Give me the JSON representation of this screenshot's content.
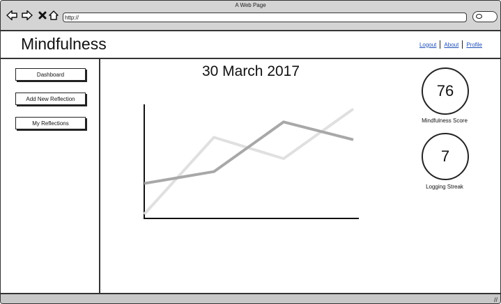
{
  "browser": {
    "window_title": "A Web Page",
    "url": "http://",
    "icons": [
      "back-arrow-icon",
      "forward-arrow-icon",
      "close-icon",
      "home-icon",
      "search-icon"
    ]
  },
  "header": {
    "app_title": "Mindfulness",
    "links": [
      "Logout",
      "About",
      "Profile"
    ]
  },
  "sidebar": {
    "items": [
      {
        "label": "Dashboard"
      },
      {
        "label": "Add New Reflection"
      },
      {
        "label": "My Reflections"
      }
    ]
  },
  "main": {
    "date": "30 March 2017",
    "stats": [
      {
        "value": "76",
        "label": "Mindfulness Score"
      },
      {
        "value": "7",
        "label": "Logging Streak"
      }
    ]
  },
  "chart_data": {
    "type": "line",
    "title": "",
    "xlabel": "",
    "ylabel": "",
    "grid": false,
    "legend": "none",
    "x": [
      0,
      1,
      2,
      3
    ],
    "xlim": [
      0,
      3
    ],
    "ylim": [
      0,
      10
    ],
    "series": [
      {
        "color": "#e0e0e0",
        "values": [
          0.3,
          6.8,
          5.0,
          9.2
        ]
      },
      {
        "color": "#a8a8a8",
        "values": [
          2.9,
          3.9,
          8.1,
          6.6
        ]
      }
    ]
  }
}
